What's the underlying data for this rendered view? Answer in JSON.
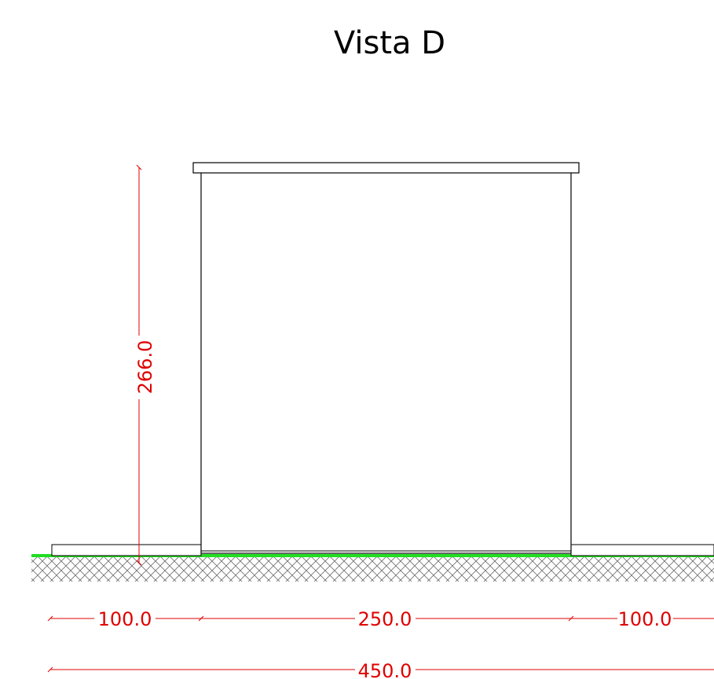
{
  "drawing": {
    "title": "Vista D",
    "colors": {
      "outline": "#000000",
      "dimension": "#e00000",
      "ground_line": "#22dd22",
      "hatch": "#6e6e6e",
      "background": "#ffffff"
    },
    "dimensions": {
      "height": "266.0",
      "left_side": "100.0",
      "center": "250.0",
      "right_side": "100.0",
      "total": "450.0"
    }
  }
}
